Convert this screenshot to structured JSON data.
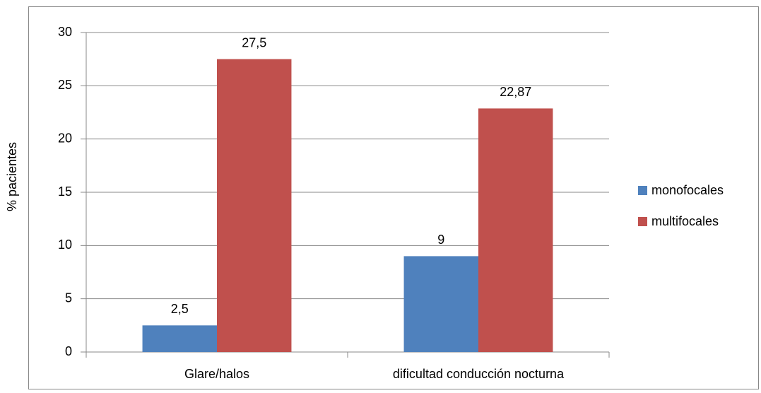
{
  "chart_data": {
    "type": "bar",
    "y_label": "% pacientes",
    "categories": [
      "Glare/halos",
      "dificultad conducción nocturna"
    ],
    "series": [
      {
        "name": "monofocales",
        "color": "#4f81bd",
        "values": [
          2.5,
          9
        ],
        "value_labels": [
          "2,5",
          "9"
        ]
      },
      {
        "name": "multifocales",
        "color": "#c0504d",
        "values": [
          27.5,
          22.87
        ],
        "value_labels": [
          "27,5",
          "22,87"
        ]
      }
    ],
    "ylim": [
      0,
      30
    ],
    "yticks": [
      0,
      5,
      10,
      15,
      20,
      25,
      30
    ],
    "grid": true,
    "legend": "right"
  }
}
